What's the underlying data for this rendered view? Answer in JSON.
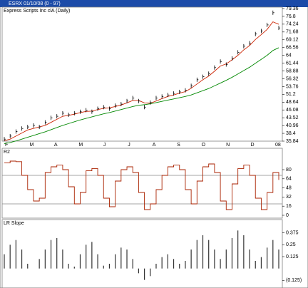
{
  "window_title": "ESRX 01/10/08 (0 - 97)",
  "chart_data": [
    {
      "type": "price",
      "title": "Express Scripts Inc clA (Daily)",
      "months": [
        "F",
        "M",
        "A",
        "M",
        "J",
        "J",
        "A",
        "S",
        "O",
        "N",
        "D",
        "08"
      ],
      "values": [
        36.5,
        37.5,
        39,
        40,
        40.5,
        41,
        40.5,
        42,
        43.5,
        44,
        45,
        44.5,
        45,
        45.5,
        46,
        45.5,
        46.5,
        47,
        46.5,
        47.5,
        48,
        49,
        50,
        49,
        47,
        48.5,
        50,
        50.5,
        51,
        51.5,
        52,
        52.5,
        54,
        56,
        57,
        58,
        60,
        62,
        61,
        63,
        65,
        67,
        68,
        71,
        72,
        74,
        78,
        73
      ],
      "color": "#000000",
      "series": [
        {
          "color": "#cc2200",
          "values": [
            36,
            36.5,
            37.5,
            38.5,
            39.5,
            40,
            40.5,
            41,
            42,
            43,
            44,
            44.3,
            44.7,
            45.2,
            45.6,
            45.7,
            46.2,
            46.6,
            46.8,
            47.2,
            47.7,
            48.4,
            49.2,
            49.2,
            48.4,
            48.3,
            49,
            49.8,
            50.5,
            51,
            51.6,
            52.1,
            53.2,
            54.6,
            56,
            57.2,
            58.8,
            60.5,
            61.2,
            62.5,
            64,
            65.8,
            67.2,
            69.2,
            70.8,
            72.5,
            75,
            74.2
          ]
        },
        {
          "color": "#008800",
          "values": [
            35,
            35.4,
            35.9,
            36.5,
            37.1,
            37.7,
            38.3,
            38.9,
            39.6,
            40.3,
            41,
            41.6,
            42.2,
            42.8,
            43.3,
            43.8,
            44.3,
            44.8,
            45.2,
            45.7,
            46.2,
            46.7,
            47.2,
            47.6,
            47.8,
            48.1,
            48.5,
            48.9,
            49.3,
            49.7,
            50.1,
            50.5,
            51,
            51.7,
            52.4,
            53.1,
            54,
            54.9,
            55.8,
            56.8,
            57.9,
            59,
            60.1,
            61.4,
            62.7,
            64,
            65.6,
            66.5
          ]
        }
      ],
      "ylim": [
        35.84,
        79.36
      ],
      "yticks": [
        79.36,
        76.8,
        74.24,
        71.68,
        69.12,
        66.56,
        64,
        61.44,
        58.88,
        56.32,
        53.76,
        51.2,
        48.64,
        46.08,
        43.52,
        40.96,
        38.4,
        35.84
      ]
    },
    {
      "type": "line",
      "title": "R2",
      "color": "#aa2200",
      "values": [
        92,
        95,
        94,
        70,
        45,
        25,
        30,
        75,
        85,
        88,
        80,
        50,
        20,
        40,
        78,
        82,
        70,
        30,
        15,
        60,
        80,
        85,
        75,
        40,
        10,
        20,
        45,
        70,
        85,
        88,
        80,
        45,
        20,
        60,
        85,
        90,
        75,
        25,
        10,
        55,
        82,
        88,
        70,
        30,
        10,
        40,
        75,
        62
      ],
      "levels": [
        70,
        20
      ],
      "ylim": [
        0,
        100
      ],
      "yticks": [
        80,
        64,
        48,
        32,
        16,
        0
      ]
    },
    {
      "type": "bar",
      "title": "LR Slope",
      "color": "#333333",
      "values": [
        0.15,
        0.25,
        0.3,
        0.2,
        0.05,
        0,
        0.1,
        0.2,
        0.3,
        0.32,
        0.2,
        0.05,
        0.02,
        0.15,
        0.25,
        0.28,
        0.15,
        0.03,
        0.05,
        0.15,
        0.22,
        0.2,
        0.1,
        -0.05,
        -0.12,
        -0.08,
        0.05,
        0.12,
        0.15,
        0.1,
        0.05,
        0.08,
        0.2,
        0.3,
        0.35,
        0.3,
        0.2,
        0.1,
        0.2,
        0.32,
        0.4,
        0.35,
        0.2,
        0.08,
        0.12,
        0.22,
        0.3,
        0.2
      ],
      "ylim": [
        -0.16,
        0.41
      ],
      "yticks": [
        0.375,
        0.25,
        0.125,
        {
          "value": -0.125,
          "label": "(0.125)"
        }
      ]
    }
  ]
}
